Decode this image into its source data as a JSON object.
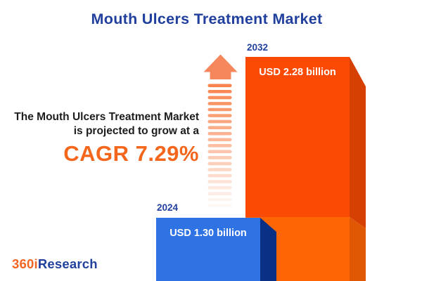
{
  "header": {
    "title": "Mouth Ulcers Treatment Market"
  },
  "growth_note": {
    "line1": "The Mouth Ulcers Treatment Market",
    "line2": "is projected to grow at a",
    "cagr_text": "CAGR 7.29%"
  },
  "chart_data": {
    "type": "bar",
    "title": "Mouth Ulcers Treatment Market",
    "categories": [
      "2024",
      "2032"
    ],
    "values": [
      1.3,
      2.28
    ],
    "unit": "USD billion",
    "value_labels": [
      "USD 1.30 billion",
      "USD 2.28 billion"
    ],
    "cagr_percent": 7.29,
    "orientation": "vertical",
    "style": "3d-bars",
    "legend": "none",
    "grid": false
  },
  "bars": [
    {
      "year": "2024",
      "value_label": "USD 1.30 billion"
    },
    {
      "year": "2032",
      "value_label": "USD 2.28 billion"
    }
  ],
  "icons": {
    "growth_arrow": "striped-up-arrow-icon"
  },
  "footer": {
    "logo_part1": "360i",
    "logo_part2": "Research"
  },
  "colors": {
    "title_blue": "#21409e",
    "text_dark": "#1d1d1d",
    "cagr_orange": "#f4661c",
    "bar_2032_front_upper": "#fb4a04",
    "bar_2032_front_lower": "#fd6505",
    "bar_2032_side_upper": "#d64103",
    "bar_2032_side_lower": "#e05704",
    "bar_2024_front": "#2e72e4",
    "bar_2024_side": "#0a3085",
    "arrow_head": "#f6875d",
    "arrow_stripe": "#f8824c",
    "bar_value_text": "#ffffff",
    "logo_orange": "#f26522",
    "logo_blue": "#21409e"
  }
}
